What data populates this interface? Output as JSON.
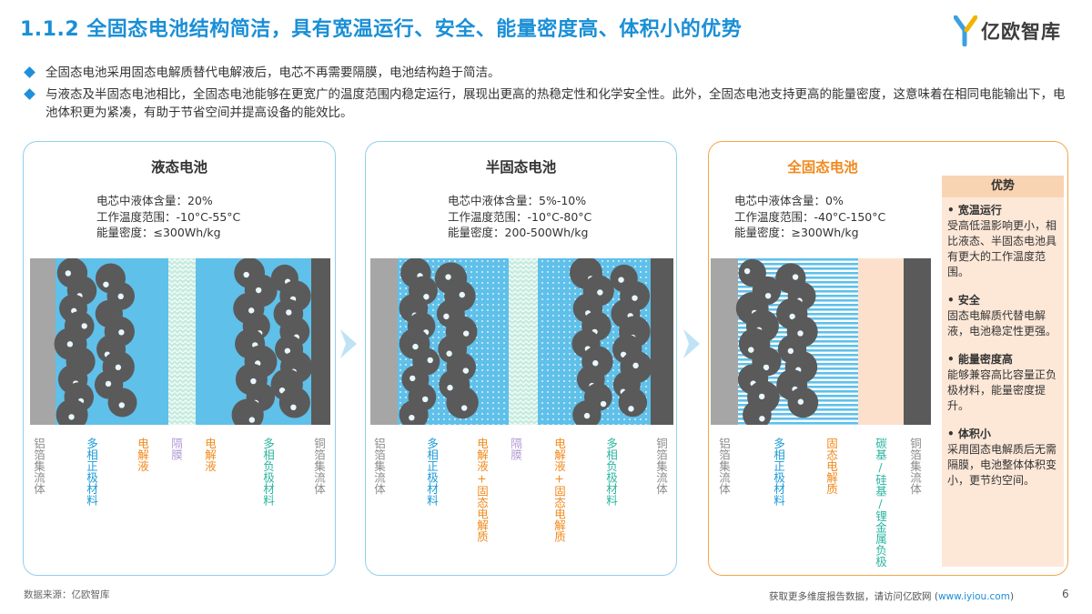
{
  "title": "1.1.2 全固态电池结构简洁，具有宽温运行、安全、能量密度高、体积小的优势",
  "logo": {
    "text": "亿欧智库",
    "icon": "yiou-logo-icon"
  },
  "bullets": [
    "全固态电池采用固态电解质替代电解液后，电芯不再需要隔膜，电池结构趋于简洁。",
    "与液态及半固态电池相比，全固态电池能够在更宽广的温度范围内稳定运行，展现出更高的热稳定性和化学安全性。此外，全固态电池支持更高的能量密度，这意味着在相同电能输出下，电池体积更为紧凑，有助于节省空间并提高设备的能效比。"
  ],
  "panels": [
    {
      "title": "液态电池",
      "specs": [
        "电芯中液体含量：20%",
        "工作温度范围：-10°C-55°C",
        "能量密度：≤300Wh/kg"
      ],
      "labels": [
        {
          "text": "铝箔集流体",
          "color": "#8c8c8c"
        },
        {
          "text": "多相正极材料",
          "color": "#1a9ad6"
        },
        {
          "text": "电解液",
          "color": "#f08a1e"
        },
        {
          "text": "隔膜",
          "color": "#b49ad6"
        },
        {
          "text": "电解液",
          "color": "#f08a1e"
        },
        {
          "text": "多相负极材料",
          "color": "#2bb5a0"
        },
        {
          "text": "铜箔集流体",
          "color": "#8c8c8c"
        }
      ]
    },
    {
      "title": "半固态电池",
      "specs": [
        "电芯中液体含量：5%-10%",
        "工作温度范围：-10°C-80°C",
        "能量密度：200-500Wh/kg"
      ],
      "labels": [
        {
          "text": "铝箔集流体",
          "color": "#8c8c8c"
        },
        {
          "text": "多相正极材料",
          "color": "#1a9ad6"
        },
        {
          "text": "电解液+固态电解质",
          "color": "#f08a1e"
        },
        {
          "text": "隔膜",
          "color": "#b49ad6"
        },
        {
          "text": "电解液+固态电解质",
          "color": "#f08a1e"
        },
        {
          "text": "多相负极材料",
          "color": "#2bb5a0"
        },
        {
          "text": "铜箔集流体",
          "color": "#8c8c8c"
        }
      ]
    },
    {
      "title": "全固态电池",
      "specs": [
        "电芯中液体含量：0%",
        "工作温度范围：-40°C-150°C",
        "能量密度：≥300Wh/kg"
      ],
      "labels": [
        {
          "text": "铝箔集流体",
          "color": "#8c8c8c"
        },
        {
          "text": "多相正极材料",
          "color": "#1a9ad6"
        },
        {
          "text": "固态电解质",
          "color": "#f08a1e"
        },
        {
          "text": "碳基/硅基/锂金属负极",
          "color": "#2bb5a0"
        },
        {
          "text": "铜箔集流体",
          "color": "#8c8c8c"
        }
      ]
    }
  ],
  "advantages": {
    "title": "优势",
    "items": [
      {
        "title": "•  宽温运行",
        "body": "受高低温影响更小，相比液态、半固态电池具有更大的工作温度范围。"
      },
      {
        "title": "•  安全",
        "body": "固态电解质代替电解液，电池稳定性更强。"
      },
      {
        "title": "•  能量密度高",
        "body": "能够兼容高比容量正负极材料，能量密度提升。"
      },
      {
        "title": "•  体积小",
        "body": "采用固态电解质后无需隔膜，电池整体体积变小，更节约空间。"
      }
    ]
  },
  "source": "数据来源：亿欧智库",
  "footer": {
    "text": "获取更多维度报告数据，请访问亿欧网 (",
    "link": "www.iyiou.com",
    "close": ")"
  },
  "page_number": "6",
  "colors": {
    "accent": "#1a8fd6",
    "orange": "#f08a1e",
    "electrolyte": "#5fc0ea",
    "particle": "#5a5a5a",
    "collector_al": "#a6a6a6",
    "collector_cu": "#5a5a5a"
  }
}
